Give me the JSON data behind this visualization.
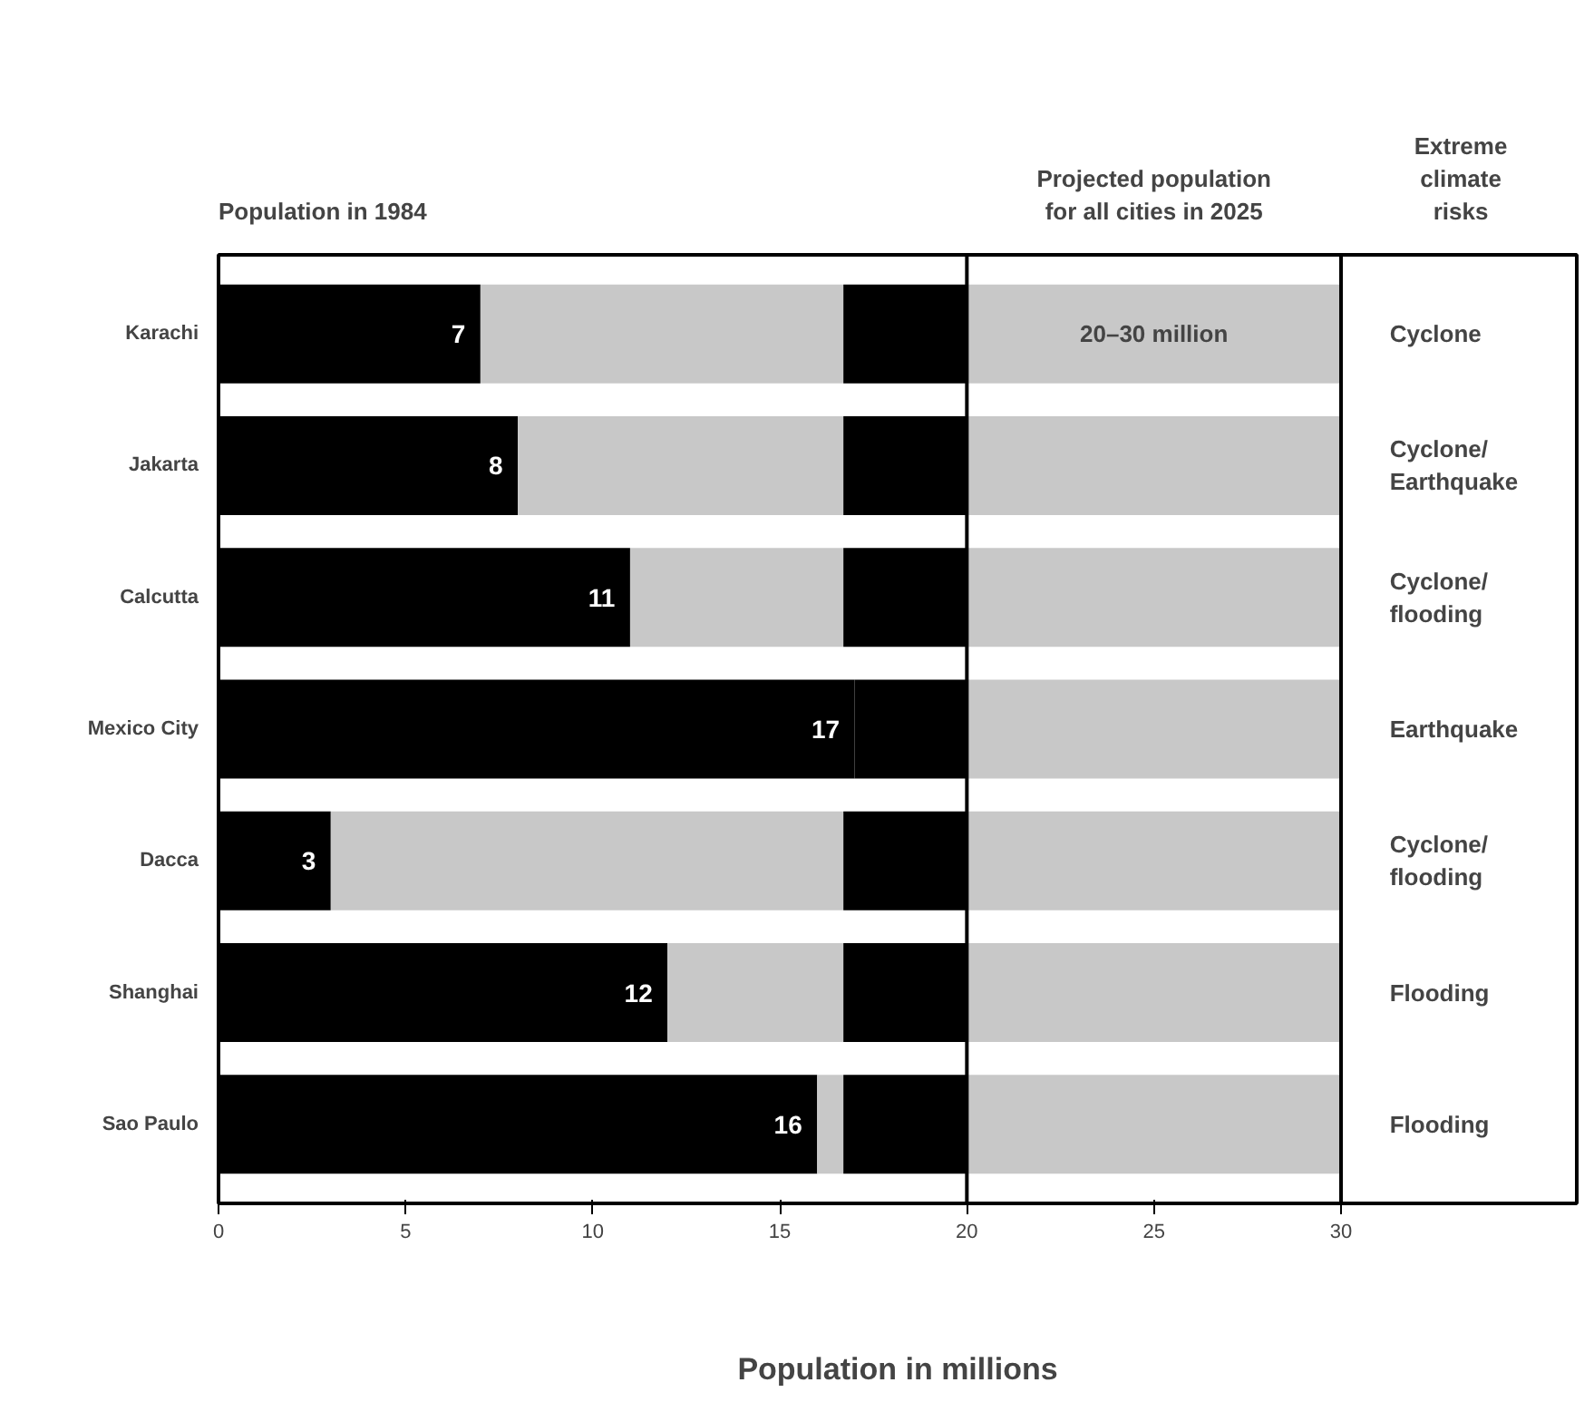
{
  "chart_data": {
    "type": "bar",
    "orientation": "horizontal",
    "stacked": true,
    "xlabel": "Population in millions",
    "categories": [
      "Karachi",
      "Jakarta",
      "Calcutta",
      "Mexico City",
      "Dacca",
      "Shanghai",
      "Sao Paulo"
    ],
    "series": [
      {
        "color": "#000000",
        "values": [
          7,
          8,
          11,
          17,
          3,
          12,
          16
        ],
        "value_labels": [
          "7",
          "8",
          "11",
          "17",
          "3",
          "12",
          "16"
        ]
      },
      {
        "color": "#c8c8c8",
        "values": [
          9.7,
          8.7,
          5.7,
          null,
          13.7,
          4.7,
          0.7
        ]
      },
      {
        "color": "#000000",
        "values": [
          3.3,
          3.3,
          3.3,
          3,
          3.3,
          3.3,
          3.3
        ]
      },
      {
        "color": "#c8c8c8",
        "values": [
          10,
          10,
          10,
          10,
          10,
          10,
          10
        ]
      }
    ],
    "xlim": [
      0,
      36.3
    ],
    "xticks": [
      0,
      5,
      10,
      15,
      20,
      25,
      30
    ],
    "ref_lines": [
      {
        "axis": "x",
        "value": 20
      },
      {
        "axis": "x",
        "value": 30
      }
    ],
    "annotations": [
      "Population in 1984",
      "Projected population\nfor all cities in 2025",
      "Extreme\nclimate\nrisks",
      "20–30 million",
      "Cyclone",
      "Cyclone/\nEarthquake",
      "Cyclone/\nflooding",
      "Earthquake",
      "Cyclone/\nflooding",
      "Flooding",
      "Flooding"
    ]
  }
}
